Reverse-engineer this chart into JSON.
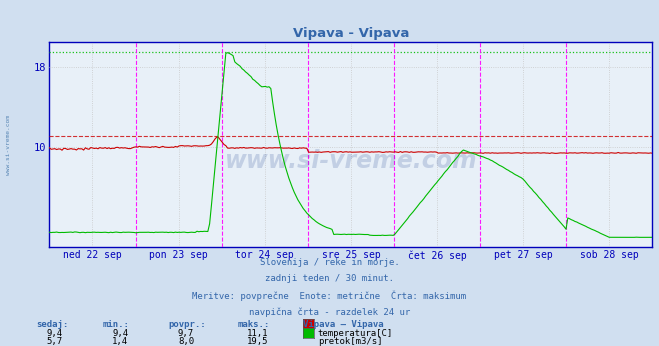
{
  "title": "Vipava - Vipava",
  "background_color": "#d0dff0",
  "plot_bg_color": "#e8f0f8",
  "x_labels": [
    "ned 22 sep",
    "pon 23 sep",
    "tor 24 sep",
    "sre 25 sep",
    "čet 26 sep",
    "pet 27 sep",
    "sob 28 sep"
  ],
  "y_ticks": [
    10,
    18
  ],
  "y_max": 20.5,
  "y_min": 0,
  "temp_color": "#cc0000",
  "flow_color": "#00bb00",
  "temp_max": 11.1,
  "flow_max": 19.5,
  "vline_color": "#ff00ff",
  "hgrid_color": "#c8c8c8",
  "axis_color": "#0000bb",
  "text_color": "#3366aa",
  "subtitle_lines": [
    "Slovenija / reke in morje.",
    "zadnji teden / 30 minut.",
    "Meritve: povprečne  Enote: metrične  Črta: maksimum",
    "navpična črta - razdelek 24 ur"
  ],
  "table_headers": [
    "sedaj:",
    "min.:",
    "povpr.:",
    "maks.:",
    "Vipava – Vipava"
  ],
  "table_row1": [
    "9,4",
    "9,4",
    "9,7",
    "11,1"
  ],
  "table_row2": [
    "5,7",
    "1,4",
    "8,0",
    "19,5"
  ],
  "table_label1": "temperatura[C]",
  "table_label2": "pretok[m3/s]"
}
